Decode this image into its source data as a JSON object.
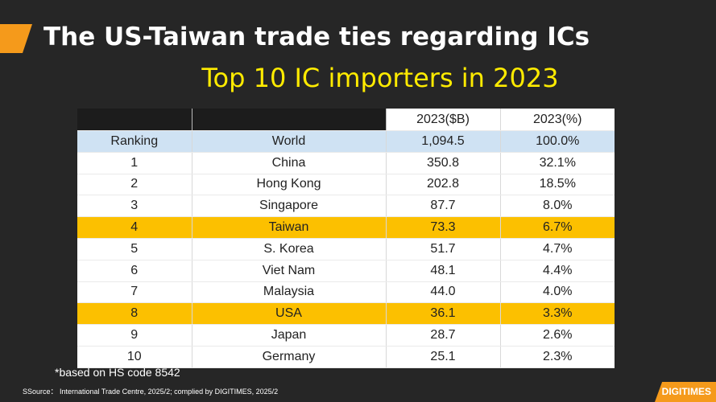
{
  "slide": {
    "title": "The US-Taiwan trade ties regarding ICs",
    "subtitle": "Top 10 IC importers in 2023",
    "footnote": "*based on HS code 8542",
    "source": "SSource： International Trade Centre, 2025/2; complied by DIGITIMES, 2025/2",
    "logo": "DIGITIMES"
  },
  "colors": {
    "accent": "#f59a1b",
    "subtitle": "#ffeb00",
    "highlight_row": "#fcc000",
    "world_row": "#cfe2f3"
  },
  "table": {
    "columns": [
      "",
      "",
      "2023($B)",
      "2023(%)"
    ],
    "world": {
      "rank": "Ranking",
      "country": "World",
      "value": "1,094.5",
      "share": "100.0%"
    },
    "rows": [
      {
        "rank": "1",
        "country": "China",
        "value": "350.8",
        "share": "32.1%",
        "highlight": false
      },
      {
        "rank": "2",
        "country": "Hong Kong",
        "value": "202.8",
        "share": "18.5%",
        "highlight": false
      },
      {
        "rank": "3",
        "country": "Singapore",
        "value": "87.7",
        "share": "8.0%",
        "highlight": false
      },
      {
        "rank": "4",
        "country": "Taiwan",
        "value": "73.3",
        "share": "6.7%",
        "highlight": true
      },
      {
        "rank": "5",
        "country": "S. Korea",
        "value": "51.7",
        "share": "4.7%",
        "highlight": false
      },
      {
        "rank": "6",
        "country": "Viet Nam",
        "value": "48.1",
        "share": "4.4%",
        "highlight": false
      },
      {
        "rank": "7",
        "country": "Malaysia",
        "value": "44.0",
        "share": "4.0%",
        "highlight": false
      },
      {
        "rank": "8",
        "country": "USA",
        "value": "36.1",
        "share": "3.3%",
        "highlight": true
      },
      {
        "rank": "9",
        "country": "Japan",
        "value": "28.7",
        "share": "2.6%",
        "highlight": false
      },
      {
        "rank": "10",
        "country": "Germany",
        "value": "25.1",
        "share": "2.3%",
        "highlight": false
      }
    ]
  }
}
